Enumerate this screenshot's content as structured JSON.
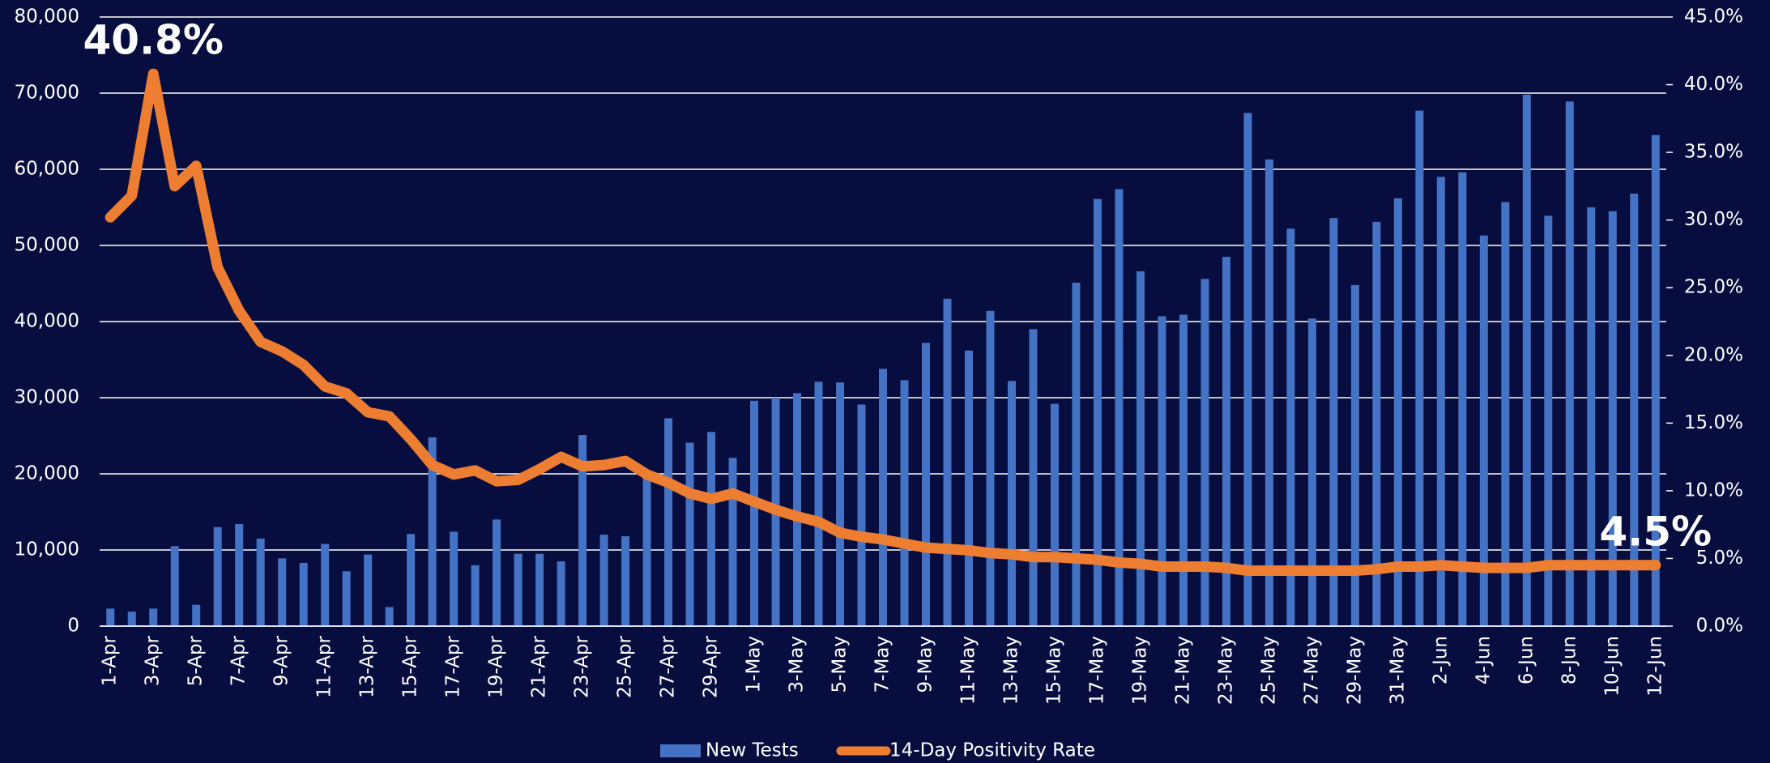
{
  "chart_data": {
    "type": "bar",
    "categories": [
      "1-Apr",
      null,
      "3-Apr",
      null,
      "5-Apr",
      null,
      "7-Apr",
      null,
      "9-Apr",
      null,
      "11-Apr",
      null,
      "13-Apr",
      null,
      "15-Apr",
      null,
      "17-Apr",
      null,
      "19-Apr",
      null,
      "21-Apr",
      null,
      "23-Apr",
      null,
      "25-Apr",
      null,
      "27-Apr",
      null,
      "29-Apr",
      null,
      "1-May",
      null,
      "3-May",
      null,
      "5-May",
      null,
      "7-May",
      null,
      "9-May",
      null,
      "11-May",
      null,
      "13-May",
      null,
      "15-May",
      null,
      "17-May",
      null,
      "19-May",
      null,
      "21-May",
      null,
      "23-May",
      null,
      "25-May",
      null,
      "27-May",
      null,
      "29-May",
      null,
      "31-May",
      null,
      "2-Jun",
      null,
      "4-Jun",
      null,
      "6-Jun",
      null,
      "8-Jun",
      null,
      "10-Jun",
      null,
      "12-Jun"
    ],
    "series": [
      {
        "name": "New Tests",
        "type": "bar",
        "color": "#4472c4",
        "values": [
          2300,
          1900,
          2300,
          10500,
          2800,
          13000,
          13400,
          11500,
          8900,
          8300,
          10800,
          7200,
          9400,
          2500,
          12100,
          24800,
          12400,
          8000,
          14000,
          9500,
          9500,
          8500,
          25100,
          12000,
          11800,
          20000,
          27300,
          24100,
          25500,
          22100,
          29600,
          30000,
          30600,
          32100,
          32000,
          29100,
          33800,
          32300,
          37200,
          43000,
          36200,
          41400,
          32200,
          39000,
          29200,
          45100,
          56100,
          57400,
          46600,
          40700,
          40900,
          45600,
          48500,
          67400,
          61300,
          52200,
          40400,
          53600,
          44800,
          53100,
          56200,
          67700,
          59000,
          59600,
          51300,
          55700,
          69800,
          53900,
          68900,
          55000,
          54500,
          56800,
          64500
        ]
      },
      {
        "name": "14-Day Positivity Rate",
        "type": "line",
        "axis": "y2",
        "color": "#ed7d31",
        "values": [
          30.2,
          31.8,
          40.8,
          32.5,
          34.0,
          26.5,
          23.3,
          21.0,
          20.3,
          19.3,
          17.7,
          17.2,
          15.8,
          15.5,
          13.8,
          11.9,
          11.2,
          11.5,
          10.7,
          10.8,
          11.6,
          12.5,
          11.8,
          11.9,
          12.2,
          11.2,
          10.6,
          9.8,
          9.4,
          9.8,
          9.2,
          8.6,
          8.1,
          7.7,
          6.9,
          6.6,
          6.4,
          6.1,
          5.8,
          5.7,
          5.6,
          5.4,
          5.3,
          5.1,
          5.1,
          5.0,
          4.9,
          4.7,
          4.6,
          4.4,
          4.4,
          4.4,
          4.3,
          4.1,
          4.1,
          4.1,
          4.1,
          4.1,
          4.1,
          4.2,
          4.4,
          4.4,
          4.5,
          4.4,
          4.3,
          4.3,
          4.3,
          4.5,
          4.5,
          4.5,
          4.5,
          4.5,
          4.5
        ],
        "value_labels": [
          null,
          null,
          "40.8%",
          null,
          null,
          null,
          null,
          null,
          null,
          null,
          null,
          null,
          null,
          null,
          null,
          null,
          null,
          null,
          null,
          null,
          null,
          null,
          null,
          null,
          null,
          null,
          null,
          null,
          null,
          null,
          null,
          null,
          null,
          null,
          null,
          null,
          null,
          null,
          null,
          null,
          null,
          null,
          null,
          null,
          null,
          null,
          null,
          null,
          null,
          null,
          null,
          null,
          null,
          null,
          null,
          null,
          null,
          null,
          null,
          null,
          null,
          null,
          null,
          null,
          null,
          null,
          null,
          null,
          null,
          null,
          null,
          null,
          "4.5%"
        ]
      }
    ],
    "ylim": [
      0,
      80000
    ],
    "yticks": [
      0,
      {
        "value": 10000,
        "label": "10,000"
      },
      {
        "value": 20000,
        "label": "20,000"
      },
      {
        "value": 30000,
        "label": "30,000"
      },
      {
        "value": 40000,
        "label": "40,000"
      },
      {
        "value": 50000,
        "label": "50,000"
      },
      {
        "value": 60000,
        "label": "60,000"
      },
      {
        "value": 70000,
        "label": "70,000"
      },
      {
        "value": 80000,
        "label": "80,000"
      }
    ],
    "y2lim": [
      0,
      45
    ],
    "y2ticks": [
      {
        "value": 0,
        "label": "0.0%"
      },
      {
        "value": 5,
        "label": "5.0%"
      },
      {
        "value": 10,
        "label": "10.0%"
      },
      {
        "value": 15,
        "label": "15.0%"
      },
      {
        "value": 20,
        "label": "20.0%"
      },
      {
        "value": 25,
        "label": "25.0%"
      },
      {
        "value": 30,
        "label": "30.0%"
      },
      {
        "value": 35,
        "label": "35.0%"
      },
      {
        "value": 40,
        "label": "40.0%"
      },
      {
        "value": 45,
        "label": "45.0%"
      }
    ],
    "grid": true,
    "legend": "bottom"
  }
}
